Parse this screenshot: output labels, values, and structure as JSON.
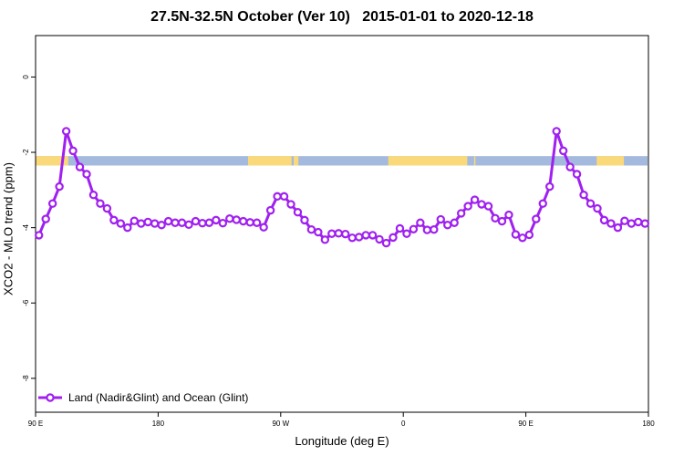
{
  "chart_data": {
    "type": "line",
    "title": "27.5N-32.5N October (Ver 10)   2015-01-01 to 2020-12-18",
    "xlabel": "Longitude (deg E)",
    "ylabel": "XCO2 - MLO trend (ppm)",
    "x_ticks": [
      {
        "value": 90,
        "label": "90 E"
      },
      {
        "value": 180,
        "label": "180"
      },
      {
        "value": 270,
        "label": "90 W"
      },
      {
        "value": 360,
        "label": "0"
      },
      {
        "value": 450,
        "label": "90 E"
      },
      {
        "value": 540,
        "label": "180"
      }
    ],
    "y_ticks": [
      {
        "value": 0,
        "label": "0"
      },
      {
        "value": -2,
        "label": "-2"
      },
      {
        "value": -4,
        "label": "-4"
      },
      {
        "value": -6,
        "label": "-6"
      },
      {
        "value": -8,
        "label": "-8"
      }
    ],
    "xlim": [
      90,
      540
    ],
    "ylim": [
      -8.9,
      1.1
    ],
    "surface_band": {
      "y_range": [
        -2.35,
        -2.1
      ],
      "ocean_color": "#a3b9dd",
      "land_color": "#fad97a",
      "land_ranges": [
        [
          90,
          114
        ],
        [
          246,
          278
        ],
        [
          279.5,
          283
        ],
        [
          349,
          407
        ],
        [
          412,
          413
        ],
        [
          502,
          522
        ]
      ]
    },
    "series": [
      {
        "name": "Land (Nadir&Glint) and Ocean (Glint)",
        "color": "#a020f0",
        "x": [
          92.5,
          97.5,
          102.5,
          107.5,
          112.5,
          117.5,
          122.5,
          127.5,
          132.5,
          137.5,
          142.5,
          147.5,
          152.5,
          157.5,
          162.5,
          167.5,
          172.5,
          177.5,
          182.5,
          187.5,
          192.5,
          197.5,
          202.5,
          207.5,
          212.5,
          217.5,
          222.5,
          227.5,
          232.5,
          237.5,
          242.5,
          247.5,
          252.5,
          257.5,
          262.5,
          267.5,
          272.5,
          277.5,
          282.5,
          287.5,
          292.5,
          297.5,
          302.5,
          307.5,
          312.5,
          317.5,
          322.5,
          327.5,
          332.5,
          337.5,
          342.5,
          347.5,
          352.5,
          357.5,
          362.5,
          367.5,
          372.5,
          377.5,
          382.5,
          387.5,
          392.5,
          397.5,
          402.5,
          407.5,
          412.5,
          417.5,
          422.5,
          427.5,
          432.5,
          437.5,
          442.5,
          447.5,
          452.5,
          457.5,
          462.5,
          467.5,
          472.5,
          477.5,
          482.5,
          487.5,
          492.5,
          497.5,
          502.5,
          507.5,
          512.5,
          517.5,
          522.5,
          527.5,
          532.5,
          537.5
        ],
        "y": [
          -4.2,
          -3.77,
          -3.36,
          -2.91,
          -1.44,
          -1.96,
          -2.39,
          -2.58,
          -3.13,
          -3.36,
          -3.49,
          -3.8,
          -3.89,
          -4.0,
          -3.82,
          -3.89,
          -3.85,
          -3.89,
          -3.93,
          -3.83,
          -3.87,
          -3.87,
          -3.92,
          -3.83,
          -3.88,
          -3.87,
          -3.8,
          -3.88,
          -3.76,
          -3.79,
          -3.83,
          -3.86,
          -3.87,
          -3.99,
          -3.54,
          -3.17,
          -3.17,
          -3.38,
          -3.59,
          -3.8,
          -4.05,
          -4.12,
          -4.32,
          -4.16,
          -4.15,
          -4.17,
          -4.27,
          -4.25,
          -4.2,
          -4.2,
          -4.31,
          -4.41,
          -4.26,
          -4.02,
          -4.16,
          -4.04,
          -3.87,
          -4.06,
          -4.05,
          -3.78,
          -3.93,
          -3.87,
          -3.62,
          -3.43,
          -3.26,
          -3.38,
          -3.43,
          -3.75,
          -3.83,
          -3.66,
          -4.18,
          -4.27,
          -4.19,
          -3.77,
          -3.36,
          -2.91,
          -1.44,
          -1.96,
          -2.39,
          -2.58,
          -3.13,
          -3.36,
          -3.49,
          -3.8,
          -3.89,
          -4.0,
          -3.82,
          -3.89,
          -3.85,
          -3.89
        ]
      }
    ],
    "legend": {
      "position": "bottom-left",
      "entries": [
        "Land (Nadir&Glint) and Ocean (Glint)"
      ]
    },
    "grid": false
  }
}
